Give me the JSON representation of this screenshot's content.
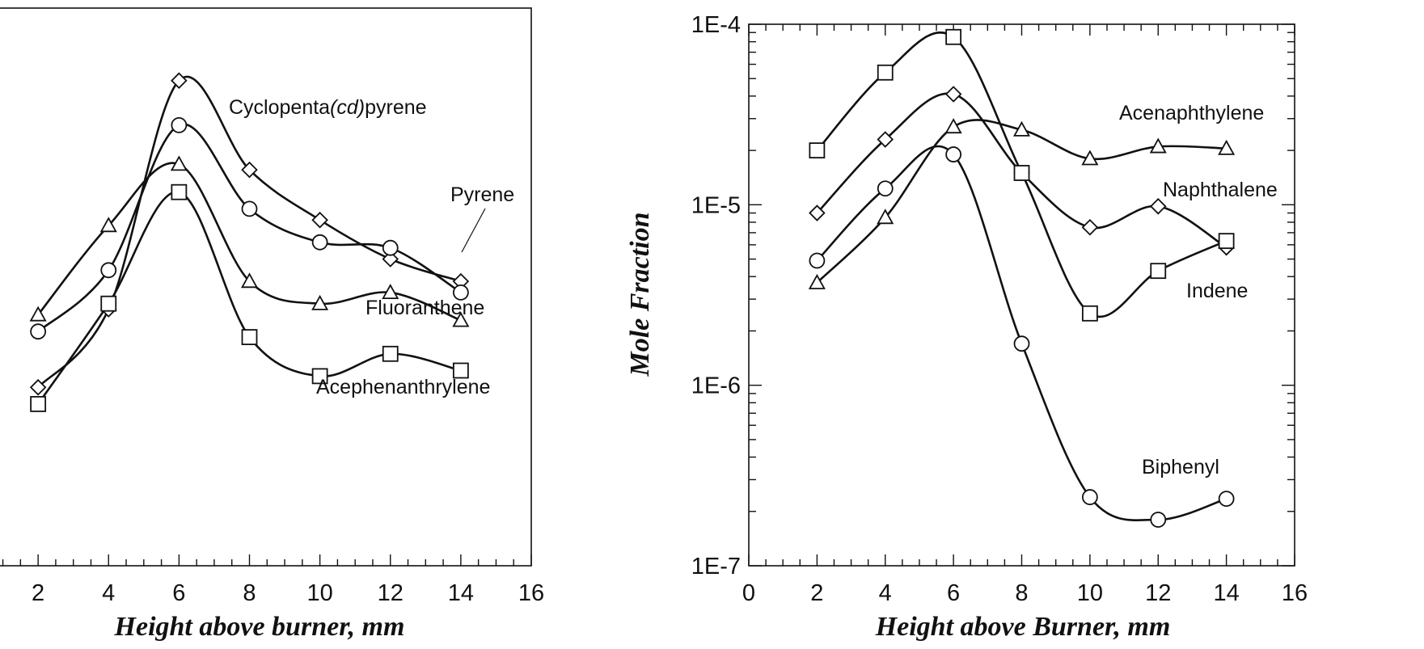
{
  "chart_data": [
    {
      "type": "scatter",
      "title": "",
      "xlabel": "Height above burner, mm",
      "ylabel": "",
      "xlim": [
        0,
        16
      ],
      "ylim": [
        0,
        1
      ],
      "x_ticks": [
        2,
        4,
        6,
        8,
        10,
        12,
        14,
        16
      ],
      "grid": false,
      "legend": "none",
      "series": [
        {
          "name": "Cyclopenta(cd)pyrene",
          "marker": "diamond",
          "x": [
            2,
            4,
            6,
            8,
            10,
            12,
            14
          ],
          "y": [
            0.32,
            0.46,
            0.87,
            0.71,
            0.62,
            0.55,
            0.51
          ]
        },
        {
          "name": "Pyrene",
          "marker": "circle",
          "x": [
            2,
            4,
            6,
            8,
            10,
            12,
            14
          ],
          "y": [
            0.42,
            0.53,
            0.79,
            0.64,
            0.58,
            0.57,
            0.49
          ]
        },
        {
          "name": "Fluoranthene",
          "marker": "triangle",
          "x": [
            2,
            4,
            6,
            8,
            10,
            12,
            14
          ],
          "y": [
            0.45,
            0.61,
            0.72,
            0.51,
            0.47,
            0.49,
            0.44
          ]
        },
        {
          "name": "Acephenanthrylene",
          "marker": "square",
          "x": [
            2,
            4,
            6,
            8,
            10,
            12,
            14
          ],
          "y": [
            0.29,
            0.47,
            0.67,
            0.41,
            0.34,
            0.38,
            0.35
          ]
        }
      ],
      "labels": {
        "cyclopenta_pre": "Cyclopenta",
        "cyclopenta_it": "(cd)",
        "cyclopenta_post": "pyrene",
        "pyrene": "Pyrene",
        "fluoranthene": "Fluoranthene",
        "acephenanthrylene": "Acephenanthrylene"
      }
    },
    {
      "type": "scatter",
      "title": "",
      "xlabel": "Height above Burner, mm",
      "ylabel": "Mole Fraction",
      "xlim": [
        0,
        16
      ],
      "ylim": [
        1e-07,
        0.0001
      ],
      "yscale": "log",
      "x_ticks": [
        0,
        2,
        4,
        6,
        8,
        10,
        12,
        14,
        16
      ],
      "y_ticks": [
        "1E-7",
        "1E-6",
        "1E-5",
        "1E-4"
      ],
      "grid": false,
      "legend": "none",
      "series": [
        {
          "name": "Acenaphthylene",
          "marker": "triangle",
          "x": [
            2,
            4,
            6,
            8,
            10,
            12,
            14
          ],
          "y": [
            3.7e-06,
            8.5e-06,
            2.7e-05,
            2.6e-05,
            1.8e-05,
            2.1e-05,
            2.05e-05
          ]
        },
        {
          "name": "Naphthalene",
          "marker": "diamond",
          "x": [
            2,
            4,
            6,
            8,
            10,
            12,
            14
          ],
          "y": [
            9e-06,
            2.3e-05,
            4.1e-05,
            1.5e-05,
            7.5e-06,
            9.8e-06,
            5.8e-06
          ]
        },
        {
          "name": "Indene",
          "marker": "square",
          "x": [
            2,
            4,
            6,
            8,
            10,
            12,
            14
          ],
          "y": [
            2e-05,
            5.4e-05,
            8.5e-05,
            1.5e-05,
            2.5e-06,
            4.3e-06,
            6.3e-06
          ]
        },
        {
          "name": "Biphenyl",
          "marker": "circle",
          "x": [
            2,
            4,
            6,
            8,
            10,
            12,
            14
          ],
          "y": [
            4.9e-06,
            1.23e-05,
            1.9e-05,
            1.7e-06,
            2.4e-07,
            1.8e-07,
            2.35e-07
          ]
        }
      ],
      "labels": {
        "acenaphthylene": "Acenaphthylene",
        "naphthalene": "Naphthalene",
        "indene": "Indene",
        "biphenyl": "Biphenyl"
      }
    }
  ]
}
